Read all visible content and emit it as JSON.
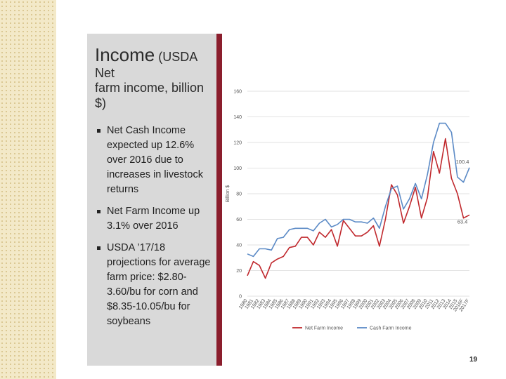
{
  "slide": {
    "title_main": "Income",
    "title_paren": " (USDA Net",
    "title_line2": "farm income, billion $)",
    "bullets": [
      "Net Cash Income expected up 12.6% over 2016 due to increases in livestock returns",
      "Net Farm Income up 3.1% over 2016",
      "USDA ’17/18 projections for average farm price: $2.80-3.60/bu for corn and $8.35-10.05/bu for soybeans"
    ],
    "page_number": "19"
  },
  "colors": {
    "net_farm": "#c0282d",
    "cash_farm": "#5b8ac6",
    "grid": "#d9d9d9",
    "divider": "#8b1e2d"
  },
  "chart_data": {
    "type": "line",
    "ylabel": "Billion $",
    "xlabel": "",
    "ylim": [
      0,
      160
    ],
    "yticks": [
      0,
      20,
      40,
      60,
      80,
      100,
      120,
      140,
      160
    ],
    "grid": true,
    "legend_position": "bottom",
    "x": [
      "1980",
      "1981",
      "1982",
      "1983",
      "1984",
      "1985",
      "1986",
      "1987",
      "1988",
      "1989",
      "1990",
      "1991",
      "1992",
      "1993",
      "1994",
      "1995",
      "1996",
      "1997",
      "1998",
      "1999",
      "2000",
      "2001",
      "2002",
      "2003",
      "2004",
      "2005",
      "2006",
      "2007",
      "2008",
      "2009",
      "2010",
      "2011",
      "2012",
      "2013",
      "2014",
      "2015",
      "2016F",
      "2017F"
    ],
    "series": [
      {
        "name": "Net Farm Income",
        "color": "#c0282d",
        "values": [
          16,
          27,
          24,
          14,
          26,
          29,
          31,
          38,
          39,
          46,
          46,
          40,
          50,
          46,
          52,
          39,
          59,
          53,
          47,
          47,
          50,
          55,
          39,
          60,
          87,
          79,
          57,
          70,
          85,
          61,
          77,
          113,
          96,
          123,
          92,
          80,
          61,
          63.4
        ]
      },
      {
        "name": "Cash Farm Income",
        "color": "#5b8ac6",
        "values": [
          33,
          31,
          37,
          37,
          36,
          45,
          46,
          52,
          53,
          53,
          53,
          51,
          57,
          60,
          54,
          56,
          60,
          60,
          58,
          58,
          57,
          61,
          53,
          70,
          84,
          86,
          68,
          76,
          88,
          76,
          95,
          120,
          135,
          135,
          128,
          93,
          89,
          100.4
        ]
      }
    ],
    "annotations": [
      {
        "series": "Cash Farm Income",
        "x": "2017F",
        "text": "100.4"
      },
      {
        "series": "Net Farm Income",
        "x": "2017F",
        "text": "63.4"
      }
    ]
  }
}
